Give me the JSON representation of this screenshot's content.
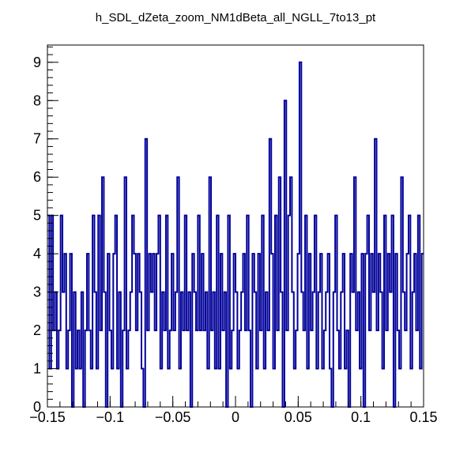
{
  "chart_data": {
    "type": "histogram",
    "title": "h_SDL_dZeta_zoom_NM1dBeta_all_NGLL_7to13_pt",
    "xlabel": "",
    "ylabel": "",
    "xlim": [
      -0.15,
      0.15
    ],
    "ylim": [
      0,
      9.45
    ],
    "x_ticks": [
      -0.15,
      -0.1,
      -0.05,
      0,
      0.05,
      0.1,
      0.15
    ],
    "x_tick_labels": [
      "−0.15",
      "−0.1",
      "−0.05",
      "0",
      "0.05",
      "0.1",
      "0.15"
    ],
    "y_ticks": [
      0,
      1,
      2,
      3,
      4,
      5,
      6,
      7,
      8,
      9
    ],
    "y_tick_labels": [
      "0",
      "1",
      "2",
      "3",
      "4",
      "5",
      "6",
      "7",
      "8",
      "9"
    ],
    "n_bins": 200,
    "bin_edges_range": [
      -0.15,
      0.15
    ],
    "line_color": "#000099",
    "bin_contents": [
      5,
      1,
      5,
      2,
      3,
      1,
      2,
      5,
      3,
      4,
      1,
      2,
      4,
      0,
      3,
      1,
      2,
      1,
      3,
      0,
      2,
      4,
      2,
      1,
      5,
      3,
      1,
      5,
      2,
      6,
      3,
      0,
      4,
      2,
      1,
      4,
      5,
      1,
      3,
      0,
      2,
      6,
      1,
      2,
      3,
      5,
      4,
      2,
      4,
      3,
      1,
      0,
      7,
      2,
      4,
      3,
      4,
      2,
      4,
      5,
      1,
      3,
      2,
      5,
      1,
      2,
      4,
      2,
      3,
      6,
      1,
      3,
      2,
      5,
      2,
      3,
      0,
      4,
      3,
      2,
      5,
      2,
      4,
      2,
      3,
      1,
      6,
      2,
      3,
      1,
      5,
      1,
      4,
      2,
      3,
      0,
      5,
      1,
      2,
      4,
      3,
      1,
      2,
      3,
      4,
      2,
      5,
      2,
      0,
      4,
      3,
      1,
      4,
      2,
      5,
      1,
      3,
      2,
      7,
      4,
      1,
      5,
      2,
      6,
      3,
      0,
      8,
      2,
      5,
      6,
      3,
      1,
      2,
      4,
      9,
      3,
      2,
      5,
      1,
      4,
      2,
      3,
      5,
      1,
      3,
      4,
      1,
      2,
      3,
      4,
      1,
      0,
      3,
      5,
      2,
      1,
      3,
      4,
      1,
      2,
      0,
      4,
      3,
      6,
      2,
      3,
      1,
      4,
      0,
      4,
      5,
      2,
      4,
      3,
      7,
      2,
      4,
      3,
      1,
      5,
      2,
      4,
      3,
      5,
      0,
      4,
      2,
      1,
      6,
      3,
      2,
      4,
      5,
      1,
      3,
      4,
      2,
      5,
      1,
      4
    ]
  }
}
